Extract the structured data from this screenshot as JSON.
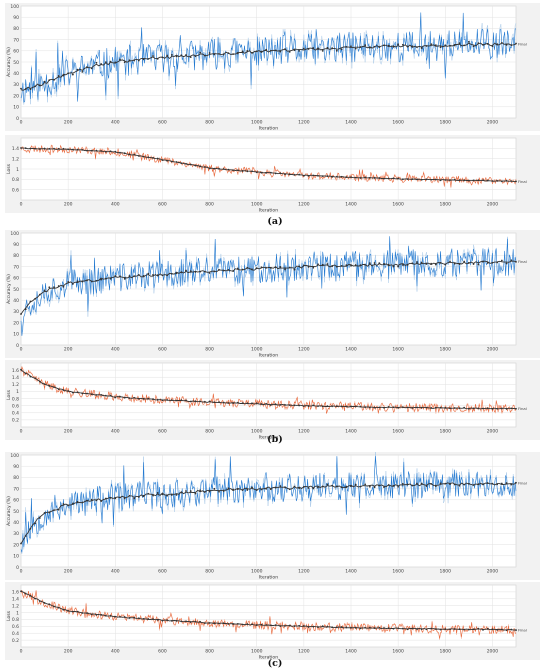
{
  "captions": [
    "(a)",
    "(b)",
    "(c)"
  ],
  "colors": {
    "accuracy": "#1f77d0",
    "accuracy_light": "#a9c9e8",
    "loss": "#e8663a",
    "loss_light": "#f4b59c",
    "smoothed": "#333333",
    "panel_bg": "#f2f2f2",
    "plot_bg": "#ffffff",
    "grid": "#e2e2e2"
  },
  "chart_data": [
    {
      "id": "a-accuracy",
      "type": "line",
      "ylabel": "Accuracy (%)",
      "xlabel": "Iteration",
      "end_label": "Final",
      "xlim": [
        0,
        2100
      ],
      "ylim": [
        0,
        100
      ],
      "xticks": [
        0,
        200,
        400,
        600,
        800,
        1000,
        1200,
        1400,
        1600,
        1800,
        2000
      ],
      "yticks": [
        0,
        10,
        20,
        30,
        40,
        50,
        60,
        70,
        80,
        90,
        100
      ],
      "grid": true,
      "trend": [
        [
          0,
          25
        ],
        [
          100,
          31
        ],
        [
          200,
          40
        ],
        [
          300,
          46
        ],
        [
          400,
          50
        ],
        [
          600,
          54
        ],
        [
          800,
          57
        ],
        [
          1000,
          59
        ],
        [
          1200,
          61
        ],
        [
          1400,
          63
        ],
        [
          1600,
          64
        ],
        [
          1800,
          65
        ],
        [
          2000,
          66
        ],
        [
          2100,
          66
        ]
      ],
      "noise": 14,
      "seed": 11
    },
    {
      "id": "a-loss",
      "type": "line",
      "ylabel": "Loss",
      "xlabel": "Iteration",
      "end_label": "Final",
      "xlim": [
        0,
        2100
      ],
      "ylim": [
        0.4,
        1.6
      ],
      "xticks": [
        0,
        200,
        400,
        600,
        800,
        1000,
        1200,
        1400,
        1600,
        1800,
        2000
      ],
      "yticks": [
        0.6,
        0.8,
        1,
        1.2,
        1.4
      ],
      "grid": true,
      "trend": [
        [
          0,
          1.4
        ],
        [
          200,
          1.38
        ],
        [
          400,
          1.33
        ],
        [
          600,
          1.18
        ],
        [
          800,
          1.02
        ],
        [
          1000,
          0.94
        ],
        [
          1200,
          0.88
        ],
        [
          1400,
          0.84
        ],
        [
          1600,
          0.81
        ],
        [
          1800,
          0.79
        ],
        [
          2000,
          0.77
        ],
        [
          2100,
          0.76
        ]
      ],
      "noise": 0.07,
      "seed": 23
    },
    {
      "id": "b-accuracy",
      "type": "line",
      "ylabel": "Accuracy (%)",
      "xlabel": "Iteration",
      "end_label": "Final",
      "xlim": [
        0,
        2100
      ],
      "ylim": [
        0,
        100
      ],
      "xticks": [
        0,
        200,
        400,
        600,
        800,
        1000,
        1200,
        1400,
        1600,
        1800,
        2000
      ],
      "yticks": [
        0,
        10,
        20,
        30,
        40,
        50,
        60,
        70,
        80,
        90,
        100
      ],
      "grid": true,
      "trend": [
        [
          0,
          28
        ],
        [
          50,
          40
        ],
        [
          100,
          48
        ],
        [
          200,
          55
        ],
        [
          400,
          60
        ],
        [
          600,
          63
        ],
        [
          800,
          66
        ],
        [
          1000,
          68
        ],
        [
          1200,
          70
        ],
        [
          1400,
          71
        ],
        [
          1600,
          72
        ],
        [
          1800,
          73
        ],
        [
          2000,
          74
        ],
        [
          2100,
          74
        ]
      ],
      "noise": 13,
      "seed": 37
    },
    {
      "id": "b-loss",
      "type": "line",
      "ylabel": "Loss",
      "xlabel": "Iteration",
      "end_label": "Final",
      "xlim": [
        0,
        2100
      ],
      "ylim": [
        0,
        1.8
      ],
      "xticks": [
        0,
        200,
        400,
        600,
        800,
        1000,
        1200,
        1400,
        1600,
        1800,
        2000
      ],
      "yticks": [
        0.2,
        0.4,
        0.6,
        0.8,
        1,
        1.2,
        1.4,
        1.6
      ],
      "grid": true,
      "trend": [
        [
          0,
          1.6
        ],
        [
          50,
          1.4
        ],
        [
          100,
          1.2
        ],
        [
          200,
          1.0
        ],
        [
          400,
          0.85
        ],
        [
          600,
          0.76
        ],
        [
          800,
          0.7
        ],
        [
          1000,
          0.65
        ],
        [
          1200,
          0.6
        ],
        [
          1400,
          0.57
        ],
        [
          1600,
          0.55
        ],
        [
          1800,
          0.53
        ],
        [
          2000,
          0.52
        ],
        [
          2100,
          0.52
        ]
      ],
      "noise": 0.12,
      "seed": 41
    },
    {
      "id": "c-accuracy",
      "type": "line",
      "ylabel": "Accuracy (%)",
      "xlabel": "Iteration",
      "end_label": "Final",
      "xlim": [
        0,
        2100
      ],
      "ylim": [
        0,
        100
      ],
      "xticks": [
        0,
        200,
        400,
        600,
        800,
        1000,
        1200,
        1400,
        1600,
        1800,
        2000
      ],
      "yticks": [
        0,
        10,
        20,
        30,
        40,
        50,
        60,
        70,
        80,
        90,
        100
      ],
      "grid": true,
      "trend": [
        [
          0,
          22
        ],
        [
          50,
          38
        ],
        [
          100,
          48
        ],
        [
          200,
          56
        ],
        [
          400,
          62
        ],
        [
          600,
          65
        ],
        [
          800,
          68
        ],
        [
          1000,
          70
        ],
        [
          1200,
          71
        ],
        [
          1400,
          72
        ],
        [
          1600,
          73
        ],
        [
          1800,
          74
        ],
        [
          2000,
          74
        ],
        [
          2100,
          74
        ]
      ],
      "noise": 13,
      "seed": 53
    },
    {
      "id": "c-loss",
      "type": "line",
      "ylabel": "Loss",
      "xlabel": "Iteration",
      "end_label": "Final",
      "xlim": [
        0,
        2100
      ],
      "ylim": [
        0,
        1.8
      ],
      "xticks": [
        0,
        200,
        400,
        600,
        800,
        1000,
        1200,
        1400,
        1600,
        1800,
        2000
      ],
      "yticks": [
        0.2,
        0.4,
        0.6,
        0.8,
        1,
        1.2,
        1.4,
        1.6
      ],
      "grid": true,
      "trend": [
        [
          0,
          1.62
        ],
        [
          50,
          1.45
        ],
        [
          100,
          1.28
        ],
        [
          200,
          1.05
        ],
        [
          400,
          0.88
        ],
        [
          600,
          0.78
        ],
        [
          800,
          0.7
        ],
        [
          1000,
          0.64
        ],
        [
          1200,
          0.6
        ],
        [
          1400,
          0.56
        ],
        [
          1600,
          0.54
        ],
        [
          1800,
          0.52
        ],
        [
          2000,
          0.51
        ],
        [
          2100,
          0.5
        ]
      ],
      "noise": 0.12,
      "seed": 67
    }
  ]
}
